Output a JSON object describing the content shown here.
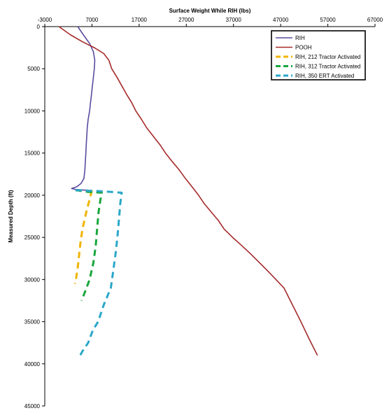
{
  "chart_data": {
    "type": "line",
    "title": "",
    "xlabel": "Surface Weight While RIH (lbs)",
    "ylabel": "Measured Depth (ft)",
    "xlim": [
      -3000,
      67000
    ],
    "ylim": [
      0,
      45000
    ],
    "x_ticks": [
      -3000,
      7000,
      17000,
      27000,
      37000,
      47000,
      57000,
      67000
    ],
    "y_ticks": [
      0,
      5000,
      10000,
      15000,
      20000,
      25000,
      30000,
      35000,
      40000,
      45000
    ],
    "x_axis_position": "top",
    "y_axis_reversed": true,
    "grid": false,
    "legend_position": "top-right",
    "series": [
      {
        "name": "RIH",
        "color": "#5b4a9e",
        "style": "solid",
        "points": [
          [
            4000,
            0
          ],
          [
            5200,
            1000
          ],
          [
            6500,
            2000
          ],
          [
            7300,
            3000
          ],
          [
            7600,
            4000
          ],
          [
            7500,
            5000
          ],
          [
            7300,
            6000
          ],
          [
            7100,
            7000
          ],
          [
            6900,
            8000
          ],
          [
            6700,
            9000
          ],
          [
            6500,
            10000
          ],
          [
            6200,
            11000
          ],
          [
            6000,
            12000
          ],
          [
            5900,
            13000
          ],
          [
            5800,
            14000
          ],
          [
            5700,
            15000
          ],
          [
            5600,
            16000
          ],
          [
            5500,
            17000
          ],
          [
            5300,
            18000
          ],
          [
            4700,
            18600
          ],
          [
            3800,
            19000
          ],
          [
            2700,
            19200
          ],
          [
            3500,
            19300
          ],
          [
            4500,
            19350
          ],
          [
            5500,
            19400
          ],
          [
            6200,
            19400
          ]
        ]
      },
      {
        "name": "POOH",
        "color": "#a52a2a",
        "style": "solid",
        "points": [
          [
            0,
            0
          ],
          [
            2500,
            1000
          ],
          [
            5000,
            1800
          ],
          [
            7500,
            2500
          ],
          [
            9500,
            3200
          ],
          [
            10600,
            4000
          ],
          [
            11200,
            5000
          ],
          [
            12300,
            6000
          ],
          [
            13300,
            7000
          ],
          [
            14300,
            8000
          ],
          [
            15400,
            9000
          ],
          [
            16300,
            10000
          ],
          [
            17500,
            11000
          ],
          [
            18600,
            12000
          ],
          [
            20000,
            13000
          ],
          [
            21400,
            14000
          ],
          [
            22600,
            15000
          ],
          [
            24000,
            16000
          ],
          [
            25500,
            17000
          ],
          [
            26800,
            18000
          ],
          [
            28200,
            19000
          ],
          [
            29600,
            20000
          ],
          [
            30800,
            21000
          ],
          [
            32300,
            22000
          ],
          [
            33800,
            23000
          ],
          [
            35000,
            24000
          ],
          [
            36800,
            25000
          ],
          [
            38800,
            26000
          ],
          [
            40700,
            27000
          ],
          [
            42500,
            28000
          ],
          [
            44300,
            29000
          ],
          [
            46000,
            30000
          ],
          [
            47700,
            31000
          ],
          [
            49500,
            33000
          ],
          [
            51300,
            35000
          ],
          [
            53000,
            37000
          ],
          [
            54800,
            39000
          ]
        ]
      },
      {
        "name": "RIH, 212 Tractor Activated",
        "color": "#f0b400",
        "style": "dashed",
        "points": [
          [
            7000,
            19400
          ],
          [
            6500,
            20500
          ],
          [
            5800,
            22000
          ],
          [
            5000,
            24000
          ],
          [
            4600,
            25500
          ],
          [
            4300,
            27000
          ],
          [
            4000,
            28500
          ],
          [
            3600,
            30000
          ],
          [
            3400,
            30500
          ]
        ]
      },
      {
        "name": "RIH, 312 Tractor Activated",
        "color": "#1aa63c",
        "style": "dashed",
        "points": [
          [
            3500,
            19400
          ],
          [
            6200,
            19600
          ],
          [
            9100,
            19700
          ],
          [
            8800,
            20500
          ],
          [
            8400,
            22000
          ],
          [
            8100,
            24000
          ],
          [
            7800,
            26000
          ],
          [
            7300,
            28000
          ],
          [
            6500,
            30000
          ],
          [
            5500,
            31500
          ],
          [
            4800,
            32500
          ]
        ]
      },
      {
        "name": "RIH, 350 ERT Activated",
        "color": "#2aa7c9",
        "style": "dashed",
        "points": [
          [
            3500,
            19400
          ],
          [
            8000,
            19500
          ],
          [
            11000,
            19600
          ],
          [
            13300,
            19700
          ],
          [
            13000,
            21000
          ],
          [
            12700,
            23000
          ],
          [
            12400,
            25000
          ],
          [
            12000,
            27000
          ],
          [
            11500,
            29000
          ],
          [
            11000,
            31000
          ],
          [
            9500,
            33000
          ],
          [
            8300,
            35000
          ],
          [
            7200,
            36000
          ],
          [
            6200,
            37500
          ],
          [
            5000,
            38500
          ],
          [
            4500,
            39000
          ],
          [
            4000,
            39300
          ]
        ]
      }
    ]
  }
}
